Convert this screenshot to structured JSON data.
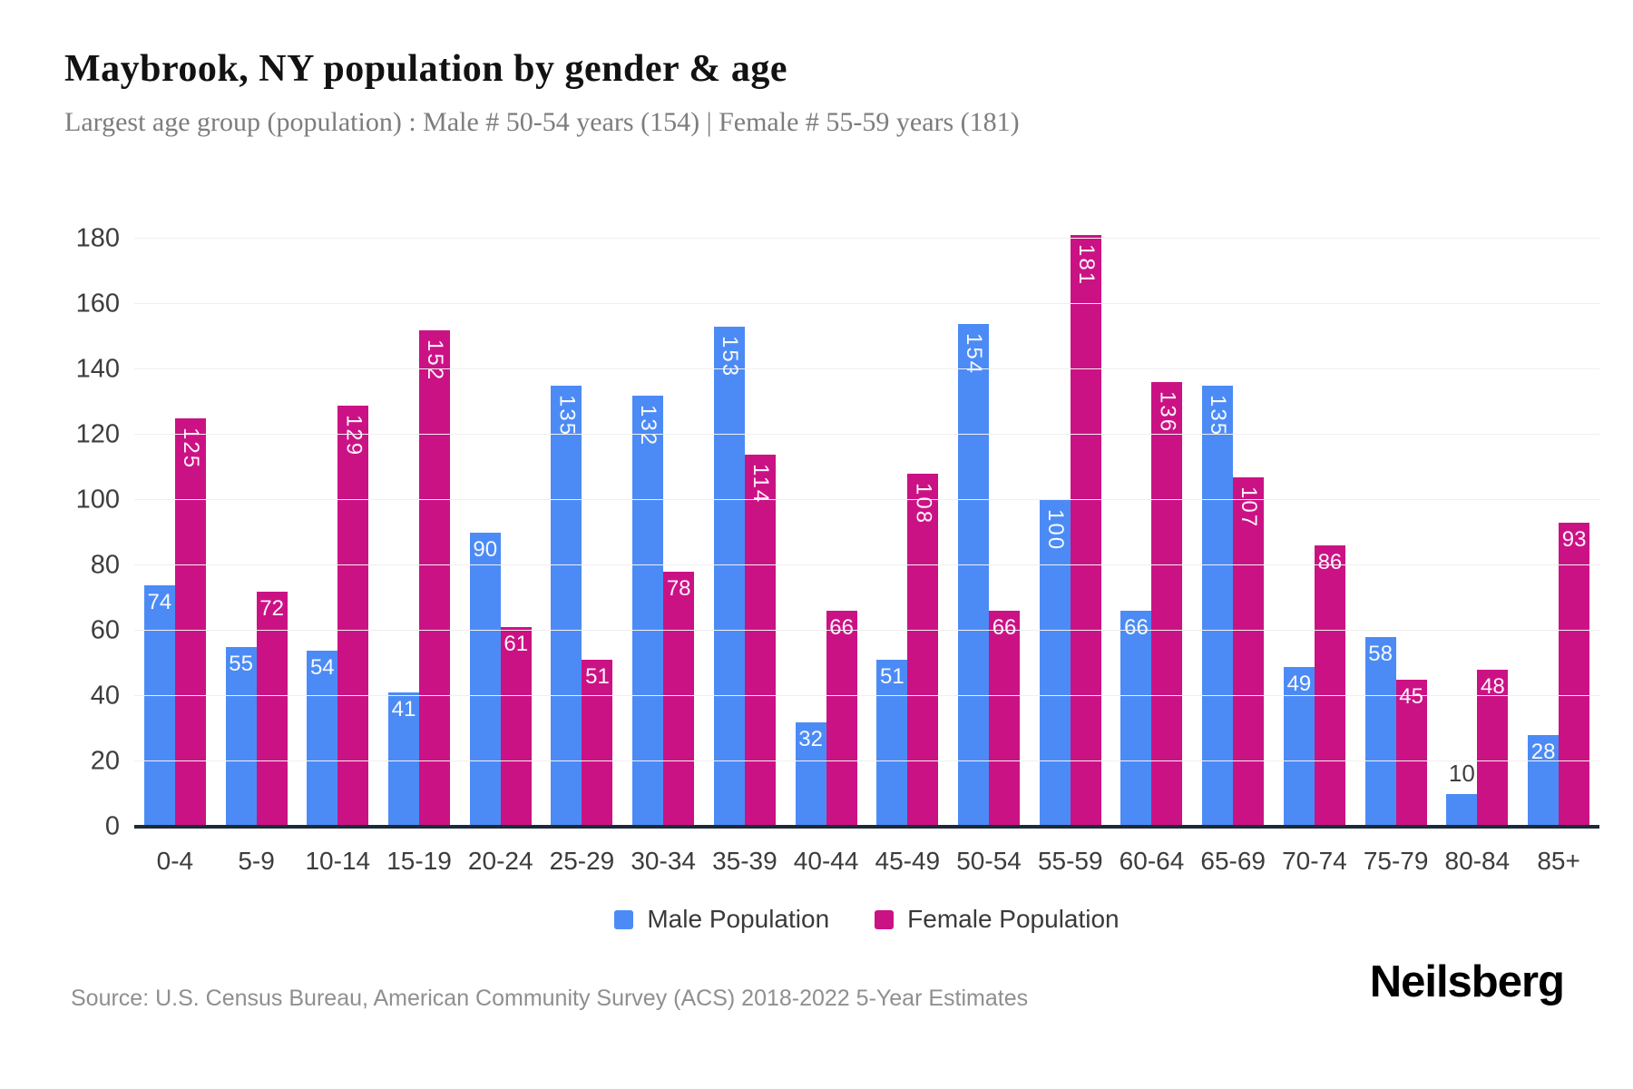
{
  "header": {
    "title": "Maybrook, NY population by gender & age",
    "subtitle": "Largest age group (population) : Male # 50-54 years (154) | Female # 55-59 years (181)"
  },
  "chart_data": {
    "type": "bar",
    "title": "Maybrook, NY population by gender & age",
    "categories": [
      "0-4",
      "5-9",
      "10-14",
      "15-19",
      "20-24",
      "25-29",
      "30-34",
      "35-39",
      "40-44",
      "45-49",
      "50-54",
      "55-59",
      "60-64",
      "65-69",
      "70-74",
      "75-79",
      "80-84",
      "85+"
    ],
    "series": [
      {
        "name": "Male Population",
        "color": "#4c8bf5",
        "values": [
          74,
          55,
          54,
          41,
          90,
          135,
          132,
          153,
          32,
          51,
          154,
          100,
          66,
          135,
          49,
          58,
          10,
          28
        ]
      },
      {
        "name": "Female Population",
        "color": "#cb1285",
        "values": [
          125,
          72,
          129,
          152,
          61,
          51,
          78,
          114,
          66,
          108,
          66,
          181,
          136,
          107,
          86,
          45,
          48,
          93
        ]
      }
    ],
    "xlabel": "",
    "ylabel": "",
    "ylim": [
      0,
      180
    ],
    "ytick_step": 20,
    "grid": true,
    "grid_color": "#efefef",
    "axis_color": "#1c2a39",
    "legend_position": "bottom",
    "value_labels": "shown on bars, white inside bar, dark above bar when bar too short, 3-digit labels rotated vertically"
  },
  "legend": {
    "male": "Male Population",
    "female": "Female Population"
  },
  "footer": {
    "source": "Source: U.S. Census Bureau, American Community Survey (ACS) 2018-2022 5-Year Estimates",
    "logo": "Neilsberg"
  }
}
